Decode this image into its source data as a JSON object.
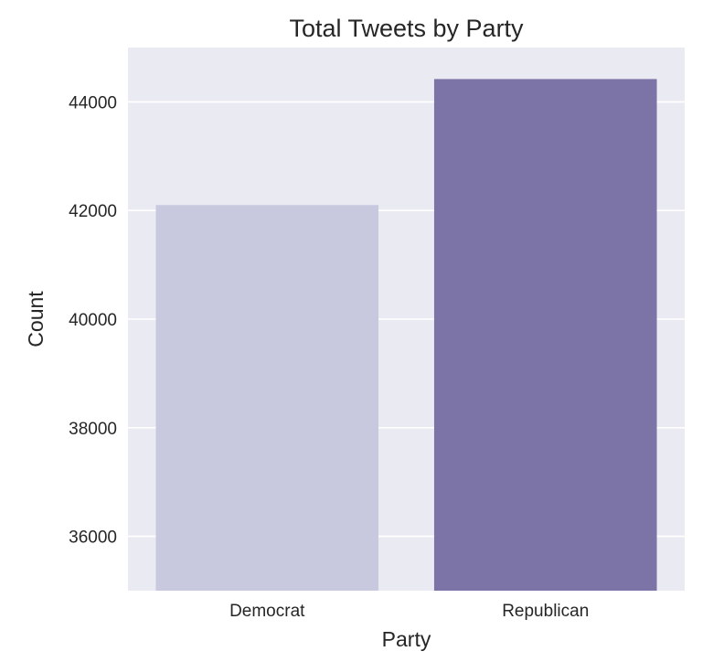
{
  "chart_data": {
    "type": "bar",
    "title": "Total Tweets by Party",
    "xlabel": "Party",
    "ylabel": "Count",
    "categories": [
      "Democrat",
      "Republican"
    ],
    "values": [
      42100,
      44420
    ],
    "bar_colors": [
      "#c8c9de",
      "#7c74a6"
    ],
    "ylim": [
      35000,
      45000
    ],
    "yticks": [
      36000,
      38000,
      40000,
      42000,
      44000
    ],
    "ytick_labels": [
      "36000",
      "38000",
      "40000",
      "42000",
      "44000"
    ],
    "grid": true,
    "background": "#eaeaf2",
    "grid_color": "#ffffff"
  }
}
